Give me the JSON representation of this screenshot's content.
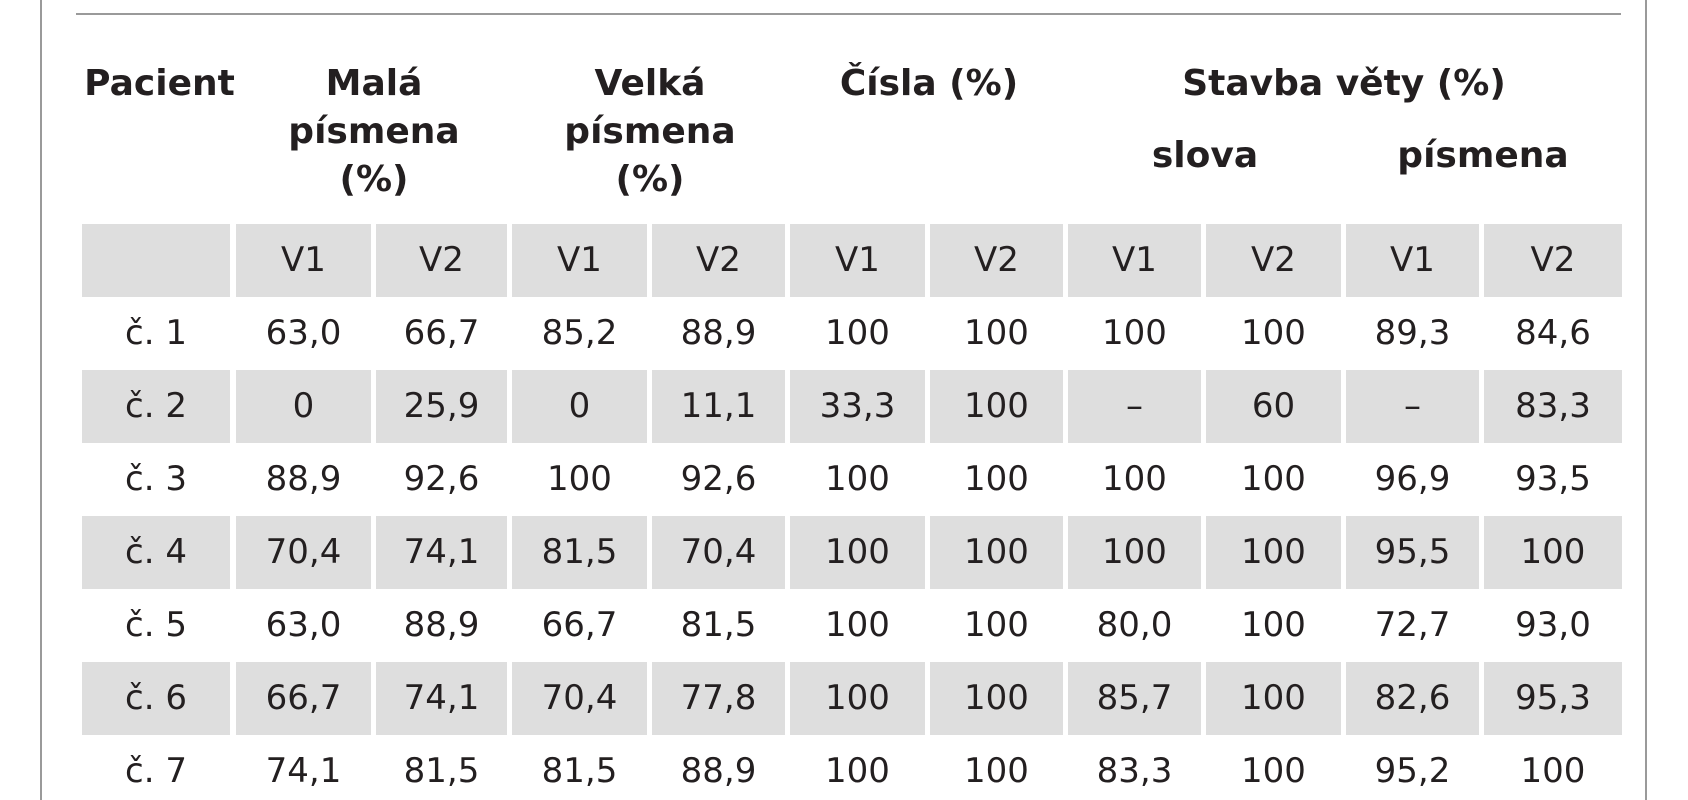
{
  "table": {
    "headers": {
      "patient": "Pacient",
      "lowercase": [
        "Malá",
        "písmena",
        "(%)"
      ],
      "uppercase": [
        "Velká",
        "písmena",
        "(%)"
      ],
      "numbers": "Čísla (%)",
      "sentence": "Stavba věty (%)",
      "words": "slova",
      "letters": "písmena"
    },
    "subheaders": [
      "",
      "V1",
      "V2",
      "V1",
      "V2",
      "V1",
      "V2",
      "V1",
      "V2",
      "V1",
      "V2"
    ],
    "rows": [
      [
        "č. 1",
        "63,0",
        "66,7",
        "85,2",
        "88,9",
        "100",
        "100",
        "100",
        "100",
        "89,3",
        "84,6"
      ],
      [
        "č. 2",
        "0",
        "25,9",
        "0",
        "11,1",
        "33,3",
        "100",
        "–",
        "60",
        "–",
        "83,3"
      ],
      [
        "č. 3",
        "88,9",
        "92,6",
        "100",
        "92,6",
        "100",
        "100",
        "100",
        "100",
        "96,9",
        "93,5"
      ],
      [
        "č. 4",
        "70,4",
        "74,1",
        "81,5",
        "70,4",
        "100",
        "100",
        "100",
        "100",
        "95,5",
        "100"
      ],
      [
        "č. 5",
        "63,0",
        "88,9",
        "66,7",
        "81,5",
        "100",
        "100",
        "80,0",
        "100",
        "72,7",
        "93,0"
      ],
      [
        "č. 6",
        "66,7",
        "74,1",
        "70,4",
        "77,8",
        "100",
        "100",
        "85,7",
        "100",
        "82,6",
        "95,3"
      ],
      [
        "č. 7",
        "74,1",
        "81,5",
        "81,5",
        "88,9",
        "100",
        "100",
        "83,3",
        "100",
        "95,2",
        "100"
      ]
    ]
  }
}
